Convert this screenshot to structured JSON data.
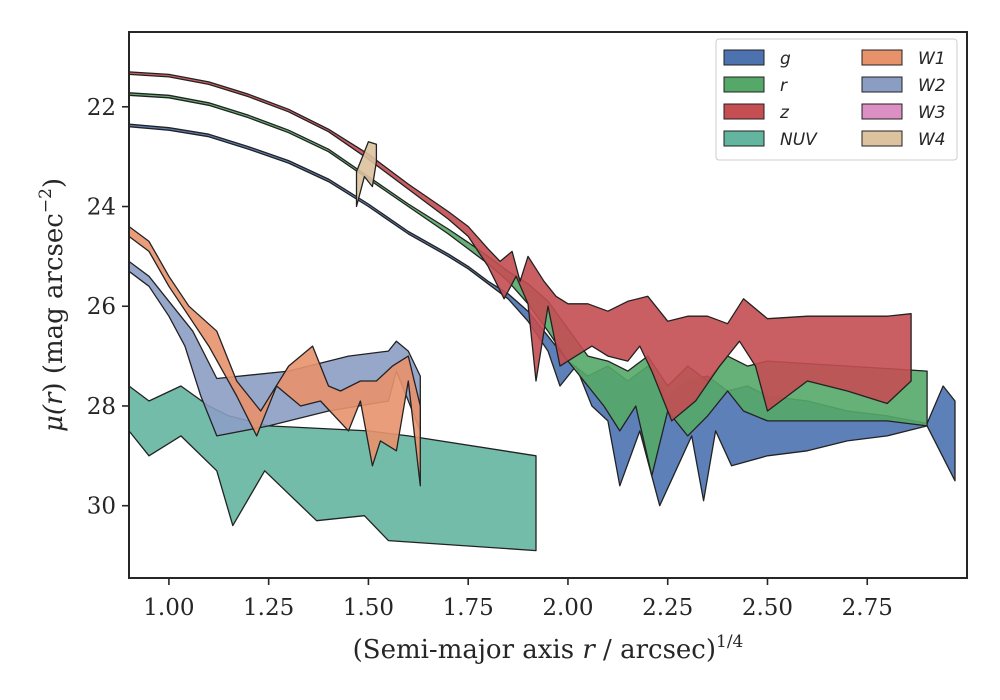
{
  "chart_data": {
    "type": "area",
    "xlabel": "(Semi-major axis r / arcsec)^1/4",
    "xlabel_parts": {
      "pre": "(Semi-major axis ",
      "var": "r",
      "post": " / arcsec)",
      "sup": "1/4"
    },
    "ylabel": "μ(r) (mag arcsec^−2)",
    "ylabel_parts": {
      "mu": "μ(",
      "var": "r",
      "mid": ") (mag arcsec",
      "sup": "−2",
      "end": ")"
    },
    "xlim": [
      0.9,
      3.0
    ],
    "ylim": [
      31.45,
      20.5
    ],
    "y_inverted": true,
    "xticks": [
      1.0,
      1.25,
      1.5,
      1.75,
      2.0,
      2.25,
      2.5,
      2.75
    ],
    "xtick_labels": [
      "1.00",
      "1.25",
      "1.50",
      "1.75",
      "2.00",
      "2.25",
      "2.50",
      "2.75"
    ],
    "yticks": [
      22,
      24,
      26,
      28,
      30
    ],
    "ytick_labels": [
      "22",
      "24",
      "26",
      "28",
      "30"
    ],
    "grid": false,
    "legend": {
      "placement": "upper-right",
      "columns": 2
    },
    "series": [
      {
        "name": "g",
        "color": "#4c72b0",
        "upper": [
          [
            0.9,
            22.35
          ],
          [
            1.0,
            22.42
          ],
          [
            1.1,
            22.55
          ],
          [
            1.2,
            22.8
          ],
          [
            1.3,
            23.08
          ],
          [
            1.4,
            23.45
          ],
          [
            1.5,
            23.95
          ],
          [
            1.6,
            24.5
          ],
          [
            1.7,
            24.95
          ],
          [
            1.75,
            25.2
          ],
          [
            1.8,
            25.5
          ],
          [
            1.85,
            25.75
          ],
          [
            1.9,
            26.1
          ],
          [
            1.95,
            26.6
          ],
          [
            2.0,
            27.1
          ],
          [
            2.05,
            27.4
          ],
          [
            2.1,
            27.2
          ],
          [
            2.15,
            27.5
          ],
          [
            2.2,
            27.2
          ],
          [
            2.25,
            27.8
          ],
          [
            2.3,
            27.5
          ],
          [
            2.35,
            27.4
          ],
          [
            2.4,
            27.7
          ],
          [
            2.45,
            27.6
          ],
          [
            2.5,
            27.8
          ],
          [
            2.6,
            27.9
          ],
          [
            2.7,
            28.1
          ],
          [
            2.8,
            28.2
          ],
          [
            2.9,
            28.35
          ],
          [
            2.94,
            27.6
          ],
          [
            2.97,
            27.9
          ]
        ],
        "lower": [
          [
            0.9,
            22.4
          ],
          [
            1.0,
            22.47
          ],
          [
            1.1,
            22.6
          ],
          [
            1.2,
            22.85
          ],
          [
            1.3,
            23.13
          ],
          [
            1.4,
            23.5
          ],
          [
            1.5,
            24.0
          ],
          [
            1.6,
            24.55
          ],
          [
            1.7,
            25.0
          ],
          [
            1.75,
            25.25
          ],
          [
            1.8,
            25.55
          ],
          [
            1.85,
            25.85
          ],
          [
            1.9,
            26.3
          ],
          [
            1.95,
            26.9
          ],
          [
            1.98,
            27.6
          ],
          [
            2.02,
            27.2
          ],
          [
            2.06,
            28.0
          ],
          [
            2.1,
            28.3
          ],
          [
            2.13,
            29.6
          ],
          [
            2.18,
            28.5
          ],
          [
            2.23,
            30.0
          ],
          [
            2.27,
            29.3
          ],
          [
            2.31,
            28.6
          ],
          [
            2.34,
            29.9
          ],
          [
            2.37,
            28.5
          ],
          [
            2.41,
            29.2
          ],
          [
            2.5,
            29.0
          ],
          [
            2.6,
            28.9
          ],
          [
            2.7,
            28.7
          ],
          [
            2.8,
            28.6
          ],
          [
            2.9,
            28.4
          ],
          [
            2.97,
            29.5
          ]
        ]
      },
      {
        "name": "r",
        "color": "#55a868",
        "upper": [
          [
            0.9,
            21.72
          ],
          [
            1.0,
            21.77
          ],
          [
            1.1,
            21.92
          ],
          [
            1.2,
            22.17
          ],
          [
            1.3,
            22.47
          ],
          [
            1.4,
            22.85
          ],
          [
            1.5,
            23.4
          ],
          [
            1.6,
            23.95
          ],
          [
            1.7,
            24.45
          ],
          [
            1.75,
            24.72
          ],
          [
            1.8,
            25.0
          ],
          [
            1.85,
            25.3
          ],
          [
            1.9,
            25.55
          ],
          [
            1.95,
            25.9
          ],
          [
            2.0,
            26.45
          ],
          [
            2.05,
            27.0
          ],
          [
            2.1,
            27.1
          ],
          [
            2.15,
            27.3
          ],
          [
            2.2,
            27.0
          ],
          [
            2.25,
            27.6
          ],
          [
            2.3,
            27.2
          ],
          [
            2.35,
            27.5
          ],
          [
            2.4,
            27.0
          ],
          [
            2.45,
            27.2
          ],
          [
            2.5,
            27.1
          ],
          [
            2.6,
            27.15
          ],
          [
            2.7,
            27.2
          ],
          [
            2.8,
            27.25
          ],
          [
            2.9,
            27.3
          ]
        ],
        "lower": [
          [
            0.9,
            21.77
          ],
          [
            1.0,
            21.82
          ],
          [
            1.1,
            21.97
          ],
          [
            1.2,
            22.22
          ],
          [
            1.3,
            22.52
          ],
          [
            1.4,
            22.9
          ],
          [
            1.5,
            23.45
          ],
          [
            1.6,
            24.0
          ],
          [
            1.7,
            24.55
          ],
          [
            1.75,
            24.85
          ],
          [
            1.8,
            25.15
          ],
          [
            1.85,
            25.5
          ],
          [
            1.9,
            25.95
          ],
          [
            1.95,
            26.5
          ],
          [
            2.0,
            27.1
          ],
          [
            2.05,
            27.6
          ],
          [
            2.09,
            28.0
          ],
          [
            2.13,
            28.5
          ],
          [
            2.17,
            28.0
          ],
          [
            2.21,
            29.4
          ],
          [
            2.25,
            28.1
          ],
          [
            2.3,
            28.6
          ],
          [
            2.35,
            28.2
          ],
          [
            2.4,
            27.7
          ],
          [
            2.44,
            28.1
          ],
          [
            2.5,
            28.3
          ],
          [
            2.6,
            28.3
          ],
          [
            2.7,
            28.3
          ],
          [
            2.8,
            28.3
          ],
          [
            2.9,
            28.4
          ]
        ]
      },
      {
        "name": "z",
        "color": "#c44e52",
        "upper": [
          [
            0.9,
            21.3
          ],
          [
            1.0,
            21.35
          ],
          [
            1.1,
            21.5
          ],
          [
            1.2,
            21.75
          ],
          [
            1.3,
            22.05
          ],
          [
            1.4,
            22.45
          ],
          [
            1.5,
            22.95
          ],
          [
            1.6,
            23.55
          ],
          [
            1.7,
            24.1
          ],
          [
            1.75,
            24.4
          ],
          [
            1.8,
            24.85
          ],
          [
            1.83,
            25.1
          ],
          [
            1.86,
            24.9
          ],
          [
            1.88,
            25.5
          ],
          [
            1.9,
            25.0
          ],
          [
            1.94,
            25.5
          ],
          [
            1.97,
            25.8
          ],
          [
            2.0,
            25.95
          ],
          [
            2.05,
            25.95
          ],
          [
            2.1,
            26.1
          ],
          [
            2.15,
            25.9
          ],
          [
            2.2,
            25.8
          ],
          [
            2.25,
            26.3
          ],
          [
            2.3,
            26.2
          ],
          [
            2.35,
            26.2
          ],
          [
            2.4,
            26.35
          ],
          [
            2.44,
            25.85
          ],
          [
            2.5,
            26.25
          ],
          [
            2.6,
            26.2
          ],
          [
            2.7,
            26.2
          ],
          [
            2.8,
            26.2
          ],
          [
            2.86,
            26.15
          ]
        ],
        "lower": [
          [
            0.9,
            21.35
          ],
          [
            1.0,
            21.4
          ],
          [
            1.1,
            21.55
          ],
          [
            1.2,
            21.8
          ],
          [
            1.3,
            22.1
          ],
          [
            1.4,
            22.5
          ],
          [
            1.5,
            23.05
          ],
          [
            1.6,
            23.65
          ],
          [
            1.7,
            24.25
          ],
          [
            1.75,
            24.6
          ],
          [
            1.8,
            25.2
          ],
          [
            1.84,
            25.85
          ],
          [
            1.87,
            25.4
          ],
          [
            1.9,
            25.95
          ],
          [
            1.92,
            27.5
          ],
          [
            1.95,
            26.0
          ],
          [
            1.98,
            27.2
          ],
          [
            2.02,
            27.0
          ],
          [
            2.06,
            26.8
          ],
          [
            2.1,
            27.0
          ],
          [
            2.15,
            27.1
          ],
          [
            2.18,
            26.8
          ],
          [
            2.21,
            27.3
          ],
          [
            2.26,
            28.3
          ],
          [
            2.32,
            27.9
          ],
          [
            2.38,
            27.2
          ],
          [
            2.43,
            26.7
          ],
          [
            2.47,
            27.2
          ],
          [
            2.5,
            28.1
          ],
          [
            2.6,
            27.5
          ],
          [
            2.7,
            27.7
          ],
          [
            2.8,
            27.95
          ],
          [
            2.86,
            27.5
          ]
        ]
      },
      {
        "name": "NUV",
        "color": "#64b5a0",
        "upper": [
          [
            0.9,
            27.6
          ],
          [
            0.95,
            27.9
          ],
          [
            1.03,
            27.6
          ],
          [
            1.1,
            28.0
          ],
          [
            1.15,
            28.2
          ],
          [
            1.2,
            28.3
          ],
          [
            1.25,
            28.4
          ],
          [
            1.5,
            28.5
          ],
          [
            1.6,
            28.6
          ],
          [
            1.92,
            29.0
          ]
        ],
        "lower": [
          [
            0.9,
            28.5
          ],
          [
            0.95,
            29.0
          ],
          [
            1.03,
            28.6
          ],
          [
            1.12,
            29.3
          ],
          [
            1.16,
            30.4
          ],
          [
            1.24,
            29.3
          ],
          [
            1.37,
            30.3
          ],
          [
            1.49,
            30.2
          ],
          [
            1.55,
            30.7
          ],
          [
            1.92,
            30.9
          ]
        ]
      },
      {
        "name": "W1",
        "color": "#e8926c",
        "upper": [
          [
            0.9,
            24.4
          ],
          [
            0.95,
            24.7
          ],
          [
            1.0,
            25.4
          ],
          [
            1.05,
            26.0
          ],
          [
            1.12,
            26.5
          ],
          [
            1.17,
            27.5
          ],
          [
            1.23,
            28.1
          ],
          [
            1.3,
            27.2
          ],
          [
            1.36,
            26.8
          ],
          [
            1.4,
            27.6
          ],
          [
            1.43,
            27.7
          ],
          [
            1.48,
            27.5
          ],
          [
            1.52,
            27.5
          ],
          [
            1.56,
            27.2
          ],
          [
            1.6,
            27.0
          ],
          [
            1.63,
            28.0
          ]
        ],
        "lower": [
          [
            0.9,
            24.6
          ],
          [
            0.95,
            24.9
          ],
          [
            1.0,
            25.6
          ],
          [
            1.05,
            26.2
          ],
          [
            1.1,
            26.8
          ],
          [
            1.17,
            27.8
          ],
          [
            1.22,
            28.6
          ],
          [
            1.27,
            27.6
          ],
          [
            1.33,
            28.0
          ],
          [
            1.38,
            27.9
          ],
          [
            1.45,
            28.5
          ],
          [
            1.48,
            27.9
          ],
          [
            1.51,
            29.2
          ],
          [
            1.53,
            28.7
          ],
          [
            1.57,
            28.9
          ],
          [
            1.6,
            27.5
          ],
          [
            1.63,
            29.6
          ]
        ]
      },
      {
        "name": "W2",
        "color": "#8c9dc4",
        "upper": [
          [
            0.9,
            25.1
          ],
          [
            0.95,
            25.4
          ],
          [
            1.0,
            25.9
          ],
          [
            1.06,
            26.5
          ],
          [
            1.12,
            27.45
          ],
          [
            1.3,
            27.3
          ],
          [
            1.45,
            27.0
          ],
          [
            1.55,
            26.9
          ],
          [
            1.57,
            26.7
          ],
          [
            1.6,
            26.9
          ],
          [
            1.63,
            27.4
          ]
        ],
        "lower": [
          [
            0.9,
            25.3
          ],
          [
            0.95,
            25.6
          ],
          [
            1.0,
            26.2
          ],
          [
            1.04,
            26.8
          ],
          [
            1.08,
            27.8
          ],
          [
            1.12,
            28.6
          ],
          [
            1.25,
            28.4
          ],
          [
            1.4,
            28.1
          ],
          [
            1.55,
            27.9
          ],
          [
            1.57,
            27.3
          ],
          [
            1.63,
            28.5
          ]
        ]
      },
      {
        "name": "W3",
        "color": "#dc8fc3",
        "upper": [],
        "lower": []
      },
      {
        "name": "W4",
        "color": "#dcc29e",
        "upper": [
          [
            1.47,
            23.3
          ],
          [
            1.5,
            22.7
          ],
          [
            1.52,
            22.75
          ]
        ],
        "lower": [
          [
            1.47,
            24.0
          ],
          [
            1.49,
            23.4
          ],
          [
            1.51,
            23.6
          ],
          [
            1.52,
            23.1
          ]
        ]
      }
    ]
  }
}
